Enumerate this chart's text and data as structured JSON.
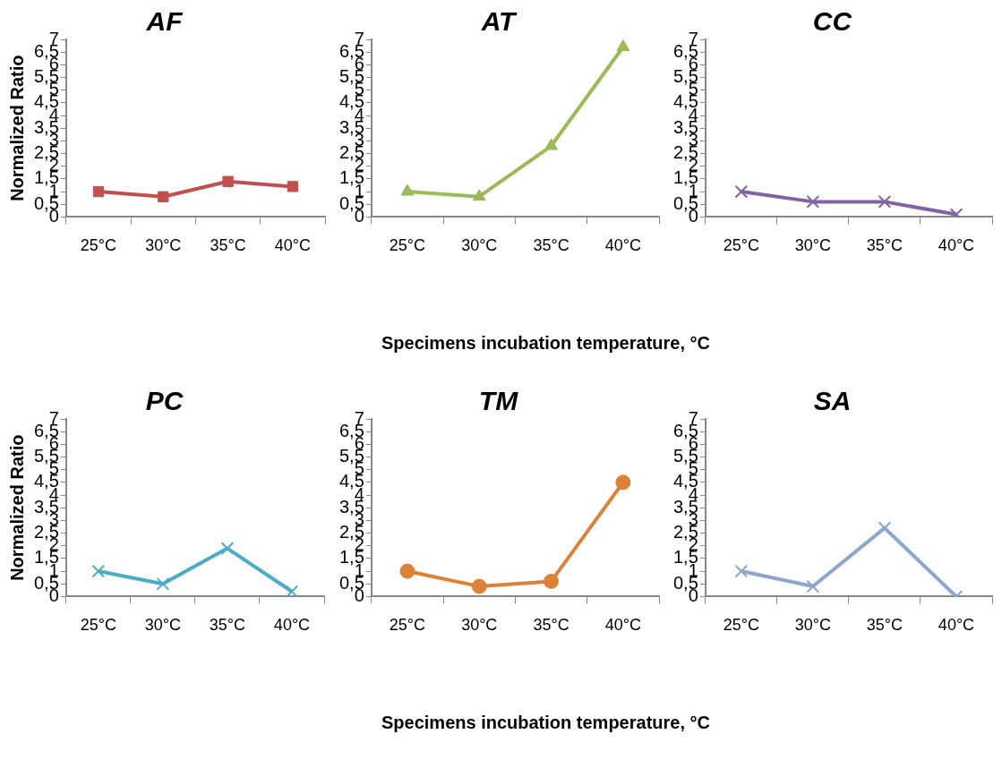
{
  "chart_data": [
    {
      "type": "line",
      "title": "AF",
      "ylabel": "Normalized Ratio",
      "categories": [
        "25°C",
        "30°C",
        "35°C",
        "40°C"
      ],
      "series": [
        {
          "color": "#c0504d",
          "values": [
            1.0,
            0.8,
            1.4,
            1.2
          ]
        }
      ],
      "marker": "square",
      "ylim": [
        0,
        7
      ],
      "yticks": [
        0,
        {
          "value": 0.5,
          "label": "0,5"
        },
        1,
        {
          "value": 1.5,
          "label": "1,5"
        },
        2,
        {
          "value": 2.5,
          "label": "2,5"
        },
        3,
        {
          "value": 3.5,
          "label": "3,5"
        },
        4,
        {
          "value": 4.5,
          "label": "4,5"
        },
        5,
        {
          "value": 5.5,
          "label": "5,5"
        },
        6,
        {
          "value": 6.5,
          "label": "6,5"
        },
        7
      ],
      "grid": false,
      "legend": false
    },
    {
      "type": "line",
      "title": "AT",
      "xlabel": "Specimens incubation temperature, °C",
      "categories": [
        "25°C",
        "30°C",
        "35°C",
        "40°C"
      ],
      "series": [
        {
          "color": "#9bbb59",
          "values": [
            1.0,
            0.8,
            2.8,
            6.7
          ]
        }
      ],
      "marker": "triangle",
      "ylim": [
        0,
        7
      ],
      "yticks": [
        0,
        {
          "value": 0.5,
          "label": "0,5"
        },
        1,
        {
          "value": 1.5,
          "label": "1,5"
        },
        2,
        {
          "value": 2.5,
          "label": "2,5"
        },
        3,
        {
          "value": 3.5,
          "label": "3,5"
        },
        4,
        {
          "value": 4.5,
          "label": "4,5"
        },
        5,
        {
          "value": 5.5,
          "label": "5,5"
        },
        6,
        {
          "value": 6.5,
          "label": "6,5"
        },
        7
      ],
      "grid": false,
      "legend": false
    },
    {
      "type": "line",
      "title": "CC",
      "categories": [
        "25°C",
        "30°C",
        "35°C",
        "40°C"
      ],
      "series": [
        {
          "color": "#8064a2",
          "values": [
            1.0,
            0.6,
            0.6,
            0.1
          ]
        }
      ],
      "marker": "cross",
      "ylim": [
        0,
        7
      ],
      "yticks": [
        0,
        {
          "value": 0.5,
          "label": "0,5"
        },
        1,
        {
          "value": 1.5,
          "label": "1,5"
        },
        2,
        {
          "value": 2.5,
          "label": "2,5"
        },
        3,
        {
          "value": 3.5,
          "label": "3,5"
        },
        4,
        {
          "value": 4.5,
          "label": "4,5"
        },
        5,
        {
          "value": 5.5,
          "label": "5,5"
        },
        6,
        {
          "value": 6.5,
          "label": "6,5"
        },
        7
      ],
      "grid": false,
      "legend": false
    },
    {
      "type": "line",
      "title": "PC",
      "ylabel": "Normalized Ratio",
      "categories": [
        "25°C",
        "30°C",
        "35°C",
        "40°C"
      ],
      "series": [
        {
          "color": "#4bacc6",
          "values": [
            1.0,
            0.5,
            1.9,
            0.2
          ]
        }
      ],
      "marker": "cross",
      "ylim": [
        0,
        7
      ],
      "yticks": [
        0,
        {
          "value": 0.5,
          "label": "0,5"
        },
        1,
        {
          "value": 1.5,
          "label": "1,5"
        },
        2,
        {
          "value": 2.5,
          "label": "2,5"
        },
        3,
        {
          "value": 3.5,
          "label": "3,5"
        },
        4,
        {
          "value": 4.5,
          "label": "4,5"
        },
        5,
        {
          "value": 5.5,
          "label": "5,5"
        },
        6,
        {
          "value": 6.5,
          "label": "6,5"
        },
        7
      ],
      "grid": false,
      "legend": false
    },
    {
      "type": "line",
      "title": "TM",
      "xlabel": "Specimens incubation temperature, °C",
      "categories": [
        "25°C",
        "30°C",
        "35°C",
        "40°C"
      ],
      "series": [
        {
          "color": "#dd8137",
          "values": [
            1.0,
            0.4,
            0.6,
            4.5
          ]
        }
      ],
      "marker": "circle",
      "ylim": [
        0,
        7
      ],
      "yticks": [
        0,
        {
          "value": 0.5,
          "label": "0,5"
        },
        1,
        {
          "value": 1.5,
          "label": "1,5"
        },
        2,
        {
          "value": 2.5,
          "label": "2,5"
        },
        3,
        {
          "value": 3.5,
          "label": "3,5"
        },
        4,
        {
          "value": 4.5,
          "label": "4,5"
        },
        5,
        {
          "value": 5.5,
          "label": "5,5"
        },
        6,
        {
          "value": 6.5,
          "label": "6,5"
        },
        7
      ],
      "grid": false,
      "legend": false
    },
    {
      "type": "line",
      "title": "SA",
      "categories": [
        "25°C",
        "30°C",
        "35°C",
        "40°C"
      ],
      "series": [
        {
          "color": "#8ea5cf",
          "values": [
            1.0,
            0.4,
            2.7,
            0.0
          ]
        }
      ],
      "marker": "cross",
      "ylim": [
        0,
        7
      ],
      "yticks": [
        0,
        {
          "value": 0.5,
          "label": "0,5"
        },
        1,
        {
          "value": 1.5,
          "label": "1,5"
        },
        2,
        {
          "value": 2.5,
          "label": "2,5"
        },
        3,
        {
          "value": 3.5,
          "label": "3,5"
        },
        4,
        {
          "value": 4.5,
          "label": "4,5"
        },
        5,
        {
          "value": 5.5,
          "label": "5,5"
        },
        6,
        {
          "value": 6.5,
          "label": "6,5"
        },
        7
      ],
      "grid": false,
      "legend": false
    }
  ]
}
